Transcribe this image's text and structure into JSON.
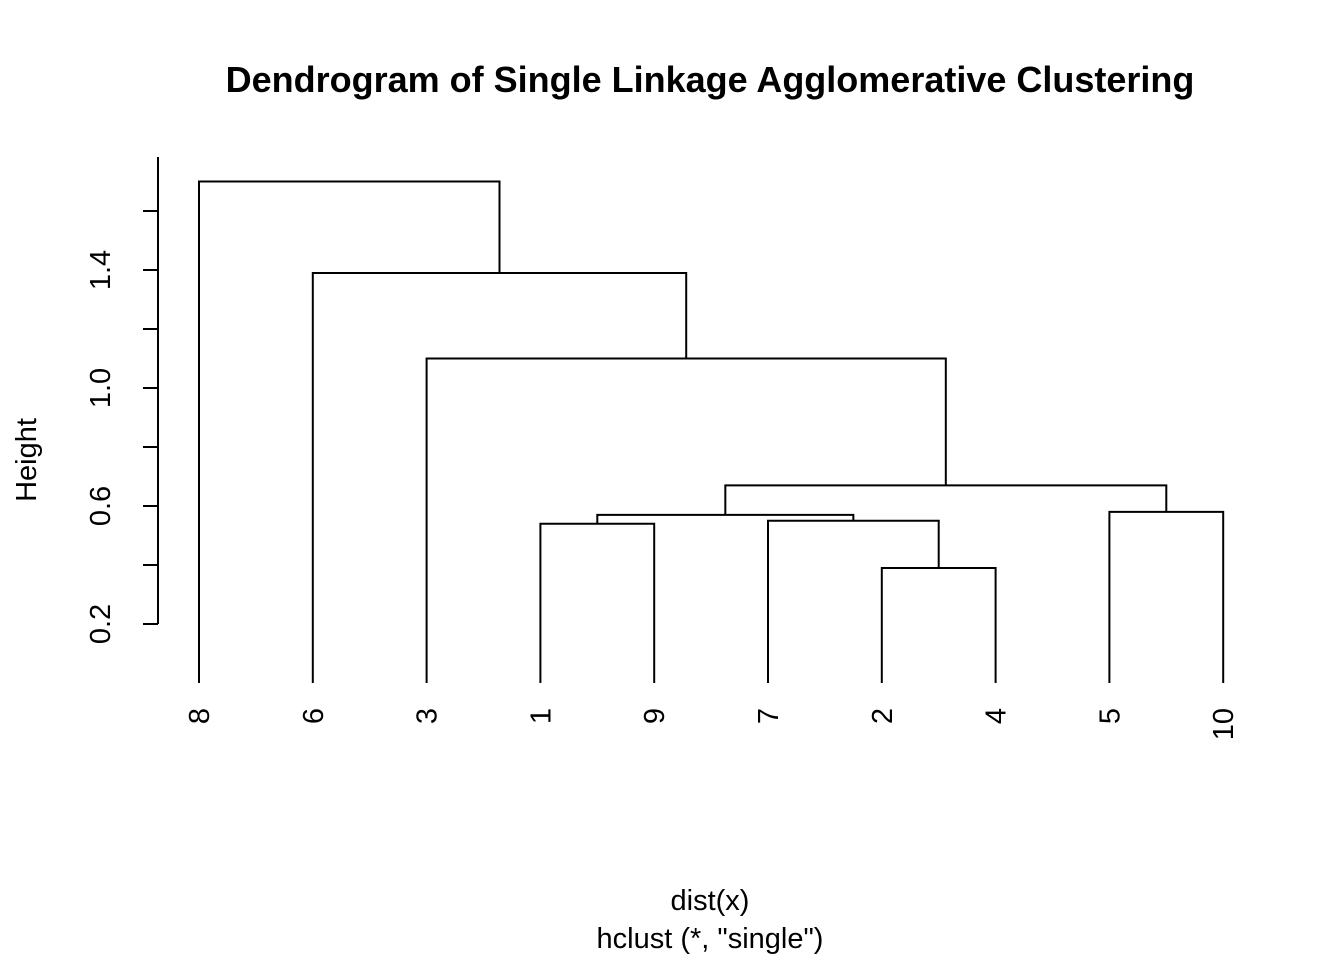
{
  "chart_data": {
    "type": "dendrogram",
    "title": "Dendrogram of Single Linkage Agglomerative Clustering",
    "xlabel": "dist(x)",
    "sub": "hclust (*, \"single\")",
    "ylabel": "Height",
    "ylim": [
      0.0,
      1.7
    ],
    "yticks": [
      0.2,
      0.4,
      0.6,
      0.8,
      1.0,
      1.2,
      1.4,
      1.6
    ],
    "ytick_labels": [
      "0.2",
      "",
      "0.6",
      "",
      "1.0",
      "",
      "1.4",
      ""
    ],
    "leaf_order": [
      "8",
      "6",
      "3",
      "1",
      "9",
      "7",
      "2",
      "4",
      "5",
      "10"
    ],
    "merges": [
      {
        "left": "2",
        "right": "4",
        "height": 0.39
      },
      {
        "left": "1",
        "right": "9",
        "height": 0.54
      },
      {
        "left": "7",
        "right": "(2,4)",
        "height": 0.55
      },
      {
        "left": "(1,9)",
        "right": "(7,(2,4))",
        "height": 0.57
      },
      {
        "left": "5",
        "right": "10",
        "height": 0.58
      },
      {
        "left": "((1,9),(7,(2,4)))",
        "right": "(5,10)",
        "height": 0.67
      },
      {
        "left": "3",
        "right": "rest",
        "height": 1.1
      },
      {
        "left": "6",
        "right": "(3,rest)",
        "height": 1.39
      },
      {
        "left": "8",
        "right": "(6,(3,rest))",
        "height": 1.7
      }
    ]
  }
}
